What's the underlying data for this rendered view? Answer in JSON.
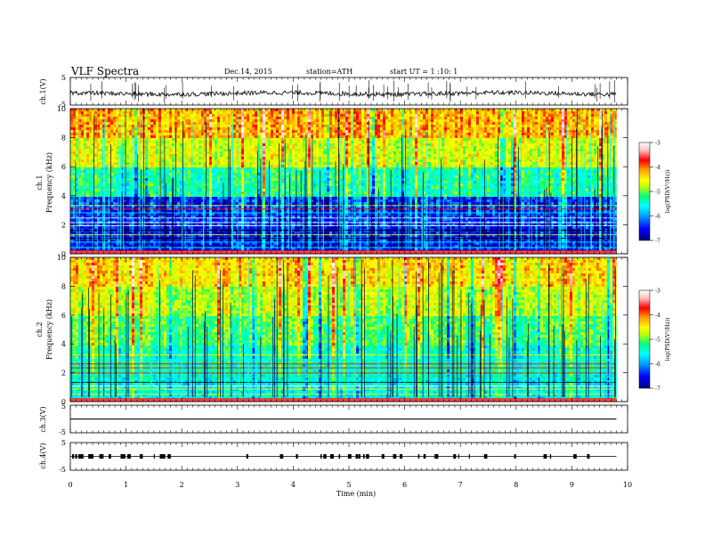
{
  "header": {
    "title": "VLF Spectra",
    "date": "Dec.14, 2015",
    "station": "station=ATH",
    "start_ut": "start UT = 1 :10: 1"
  },
  "chart_data": [
    {
      "type": "line",
      "panel": "ch1-waveform",
      "ylabel": "ch.1(V)",
      "ylim": [
        -5,
        5
      ],
      "yticks": [
        "5",
        "-5"
      ],
      "baseline": -0.8,
      "xlim": [
        0,
        10
      ],
      "data_extent": [
        0,
        9.8
      ]
    },
    {
      "type": "heatmap",
      "panel": "ch1-spectrogram",
      "ylabel_channel": "ch.1",
      "ylabel": "Frequency (kHz)",
      "ylim": [
        0,
        10
      ],
      "yticks": [
        "0",
        "2",
        "4",
        "6",
        "8",
        "10"
      ],
      "colorbar": {
        "label": "log(PSD(V²/Hz))",
        "range": [
          -7,
          -3
        ],
        "ticks": [
          "-3",
          "-4",
          "-5",
          "-6",
          "-7"
        ],
        "colors": [
          "#000080",
          "#0000ff",
          "#00a0ff",
          "#00ffff",
          "#00ff80",
          "#c0ff00",
          "#ffff00",
          "#ffa000",
          "#ff0000",
          "#ffc0c0",
          "#ffffff"
        ]
      },
      "rows": [
        {
          "f_low": 0,
          "f_high": 2,
          "level": -6.6
        },
        {
          "f_low": 2,
          "f_high": 4,
          "level": -6.5
        },
        {
          "f_low": 4,
          "f_high": 6,
          "level": -5.5
        },
        {
          "f_low": 6,
          "f_high": 8,
          "level": -4.8
        },
        {
          "f_low": 8,
          "f_high": 10,
          "level": -4.3
        }
      ]
    },
    {
      "type": "heatmap",
      "panel": "ch2-spectrogram",
      "ylabel_channel": "ch.2",
      "ylabel": "Frequency (kHz)",
      "ylim": [
        0,
        10
      ],
      "yticks": [
        "0",
        "2",
        "4",
        "6",
        "8",
        "10"
      ],
      "colorbar": {
        "label": "log(PSD(V²/Hz))",
        "range": [
          -7,
          -3
        ],
        "ticks": [
          "-3",
          "-4",
          "-5",
          "-6",
          "-7"
        ]
      },
      "rows": [
        {
          "f_low": 0,
          "f_high": 2,
          "level": -5.8
        },
        {
          "f_low": 2,
          "f_high": 4,
          "level": -5.6
        },
        {
          "f_low": 4,
          "f_high": 6,
          "level": -5.3
        },
        {
          "f_low": 6,
          "f_high": 8,
          "level": -4.9
        },
        {
          "f_low": 8,
          "f_high": 10,
          "level": -4.5
        }
      ]
    },
    {
      "type": "line",
      "panel": "ch3-waveform",
      "ylabel": "ch.3(V)",
      "ylim": [
        -5,
        5
      ],
      "yticks": [
        "5",
        "-5"
      ],
      "baseline": 0,
      "xlim": [
        0,
        10
      ],
      "data_extent": [
        0,
        9.8
      ]
    },
    {
      "type": "line",
      "panel": "ch4-waveform",
      "ylabel": "ch.4(V)",
      "ylim": [
        -5,
        5
      ],
      "yticks": [
        "5",
        "-5"
      ],
      "baseline": 0,
      "xlim": [
        0,
        10
      ],
      "data_extent": [
        0,
        9.8
      ]
    }
  ],
  "xaxis": {
    "label": "Time (min)",
    "xlim": [
      0,
      10
    ],
    "ticks": [
      "0",
      "1",
      "2",
      "3",
      "4",
      "5",
      "6",
      "7",
      "8",
      "9",
      "10"
    ]
  }
}
